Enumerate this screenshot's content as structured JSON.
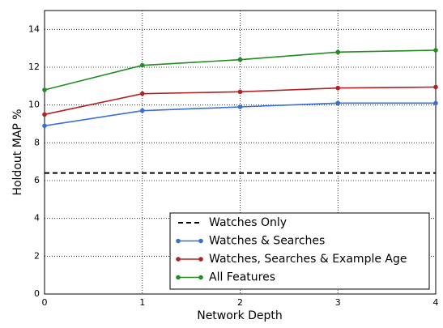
{
  "chart_data": {
    "type": "line",
    "xlabel": "Network Depth",
    "ylabel": "Holdout MAP %",
    "x": [
      0,
      1,
      2,
      3,
      4
    ],
    "xlim": [
      0,
      4
    ],
    "xticks": [
      0,
      1,
      2,
      3,
      4
    ],
    "ylim": [
      0,
      15
    ],
    "yticks": [
      0,
      2,
      4,
      6,
      8,
      10,
      12,
      14
    ],
    "grid": true,
    "legend": "lower right",
    "series": [
      {
        "name": "Watches Only",
        "color": "#000000",
        "dashed": true,
        "markers": false,
        "values": [
          6.4,
          6.4,
          6.4,
          6.4,
          6.4
        ]
      },
      {
        "name": "Watches & Searches",
        "color": "#3a6fd8",
        "dashed": false,
        "markers": true,
        "values": [
          8.9,
          9.7,
          9.9,
          10.1,
          10.1
        ]
      },
      {
        "name": "Watches, Searches & Example Age",
        "color": "#b22222",
        "dashed": false,
        "markers": true,
        "values": [
          9.5,
          10.6,
          10.7,
          10.9,
          10.95
        ]
      },
      {
        "name": "All Features",
        "color": "#228b22",
        "dashed": false,
        "markers": true,
        "values": [
          10.8,
          12.1,
          12.4,
          12.8,
          12.9
        ]
      }
    ]
  }
}
